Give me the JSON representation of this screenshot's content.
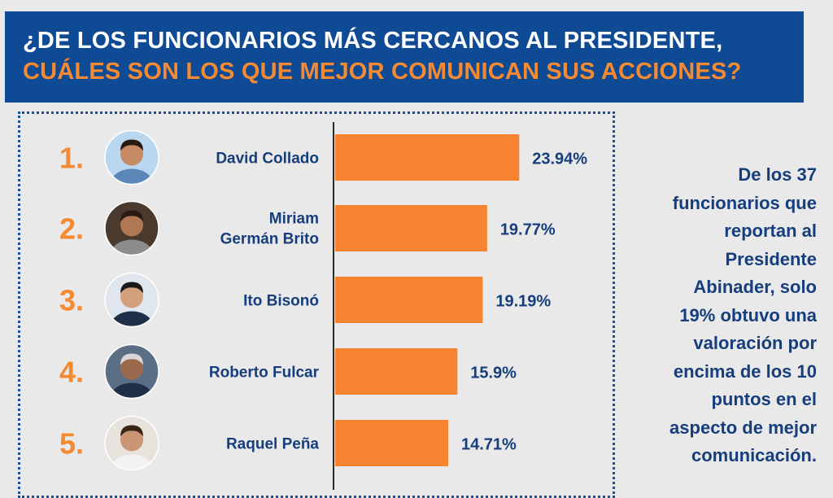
{
  "header": {
    "title_line1": "¿DE LOS FUNCIONARIOS MÁS CERCANOS AL PRESIDENTE,",
    "title_line2": "CUÁLES SON LOS QUE MEJOR COMUNICAN SUS ACCIONES?"
  },
  "chart_data": {
    "type": "bar",
    "orientation": "horizontal",
    "categories": [
      "David Collado",
      "Miriam Germán Brito",
      "Ito Bisonó",
      "Roberto Fulcar",
      "Raquel Peña"
    ],
    "name_lines": [
      [
        "David Collado"
      ],
      [
        "Miriam",
        "Germán Brito"
      ],
      [
        "Ito Bisonó"
      ],
      [
        "Roberto Fulcar"
      ],
      [
        "Raquel Peña"
      ]
    ],
    "ranks": [
      "1.",
      "2.",
      "3.",
      "4.",
      "5."
    ],
    "values": [
      23.94,
      19.77,
      19.19,
      15.9,
      14.71
    ],
    "value_labels": [
      "23.94%",
      "19.77%",
      "19.19%",
      "15.9%",
      "14.71%"
    ],
    "bar_color": "#f7822f",
    "rank_color": "#f58a32",
    "text_color": "#173e7c"
  },
  "side_note": "De los 37\nfuncionarios que\nreportan al\nPresidente\nAbinader, solo\n19% obtuvo una\nvaloración por\nencima de los 10\npuntos en el\naspecto de mejor\ncomunicación.",
  "colors": {
    "header_bg": "#0f4a94",
    "accent": "#f58a32",
    "page_bg": "#e9e9ea"
  },
  "icons": [
    "portrait-david-collado",
    "portrait-miriam-german-brito",
    "portrait-ito-bisono",
    "portrait-roberto-fulcar",
    "portrait-raquel-pena"
  ]
}
